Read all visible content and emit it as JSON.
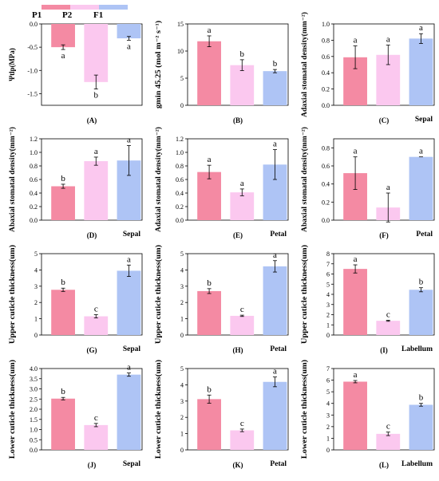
{
  "legend": [
    {
      "name": "P1",
      "color": "#f48aa3"
    },
    {
      "name": "P2",
      "color": "#fbc8ef"
    },
    {
      "name": "F1",
      "color": "#aec4f5"
    }
  ],
  "chart_data": [
    {
      "type": "bar",
      "id": "A",
      "panel_label": "(A)",
      "organ": "",
      "ylabel": "Ψtlp(MPa)",
      "ylim": [
        -1.75,
        0
      ],
      "yticks": [
        "0.0",
        "-0.5",
        "-1.0",
        "-1.5"
      ],
      "ytick_values": [
        0,
        -0.5,
        -1.0,
        -1.5
      ],
      "negative": true,
      "categories": [
        "P1",
        "P2",
        "F1"
      ],
      "values": [
        -0.5,
        -1.25,
        -0.31
      ],
      "errors": [
        0.05,
        0.15,
        0.04
      ],
      "letters": [
        "a",
        "b",
        "a"
      ]
    },
    {
      "type": "bar",
      "id": "B",
      "panel_label": "(B)",
      "organ": "",
      "ylabel": "gmin 45.25 (mol m⁻² s⁻¹)",
      "ylim": [
        0,
        15
      ],
      "yticks": [
        "0",
        "5",
        "10",
        "15"
      ],
      "ytick_values": [
        0,
        5,
        10,
        15
      ],
      "categories": [
        "P1",
        "P2",
        "F1"
      ],
      "values": [
        11.8,
        7.4,
        6.3
      ],
      "errors": [
        1.0,
        1.0,
        0.3
      ],
      "letters": [
        "a",
        "b",
        "b"
      ]
    },
    {
      "type": "bar",
      "id": "C",
      "panel_label": "(C)",
      "organ": "Sepal",
      "ylabel": "Adaxial stomatal density(mm⁻²)",
      "ylim": [
        0,
        1.0
      ],
      "yticks": [
        "0.0",
        "0.2",
        "0.4",
        "0.6",
        "0.8",
        "1.0"
      ],
      "ytick_values": [
        0,
        0.2,
        0.4,
        0.6,
        0.8,
        1.0
      ],
      "categories": [
        "P1",
        "P2",
        "F1"
      ],
      "values": [
        0.59,
        0.62,
        0.82
      ],
      "errors": [
        0.14,
        0.12,
        0.06
      ],
      "letters": [
        "a",
        "a",
        "a"
      ]
    },
    {
      "type": "bar",
      "id": "D",
      "panel_label": "(D)",
      "organ": "Sepal",
      "ylabel": "Abaxial stomatal density(mm⁻²)",
      "ylim": [
        0,
        1.2
      ],
      "yticks": [
        "0.0",
        "0.2",
        "0.4",
        "0.6",
        "0.8",
        "1.0",
        "1.2"
      ],
      "ytick_values": [
        0,
        0.2,
        0.4,
        0.6,
        0.8,
        1.0,
        1.2
      ],
      "categories": [
        "P1",
        "P2",
        "F1"
      ],
      "values": [
        0.5,
        0.87,
        0.88
      ],
      "errors": [
        0.03,
        0.06,
        0.22
      ],
      "letters": [
        "b",
        "a",
        "a"
      ]
    },
    {
      "type": "bar",
      "id": "E",
      "panel_label": "(E)",
      "organ": "Petal",
      "ylabel": "Adaxial stomatal density(mm⁻²)",
      "ylim": [
        0,
        1.2
      ],
      "yticks": [
        "0.0",
        "0.2",
        "0.4",
        "0.6",
        "0.8",
        "1.0",
        "1.2"
      ],
      "ytick_values": [
        0,
        0.2,
        0.4,
        0.6,
        0.8,
        1.0,
        1.2
      ],
      "categories": [
        "P1",
        "P2",
        "F1"
      ],
      "values": [
        0.71,
        0.41,
        0.82
      ],
      "errors": [
        0.1,
        0.05,
        0.22
      ],
      "letters": [
        "a",
        "a",
        "a"
      ]
    },
    {
      "type": "bar",
      "id": "F",
      "panel_label": "(F)",
      "organ": "Petal",
      "ylabel": "Abaxial stomatal density(mm⁻²)",
      "ylim": [
        0,
        0.9
      ],
      "yticks": [
        "0.0",
        "0.2",
        "0.4",
        "0.6",
        "0.8"
      ],
      "ytick_values": [
        0,
        0.2,
        0.4,
        0.6,
        0.8
      ],
      "categories": [
        "P1",
        "P2",
        "F1"
      ],
      "values": [
        0.52,
        0.14,
        0.7
      ],
      "errors": [
        0.18,
        0.16,
        0.0
      ],
      "letters": [
        "a",
        "a",
        "a"
      ]
    },
    {
      "type": "bar",
      "id": "G",
      "panel_label": "(G)",
      "organ": "Sepal",
      "ylabel": "Upper cuticle thickness(um)",
      "ylim": [
        0,
        5
      ],
      "yticks": [
        "0",
        "1",
        "2",
        "3",
        "4",
        "5"
      ],
      "ytick_values": [
        0,
        1,
        2,
        3,
        4,
        5
      ],
      "categories": [
        "P1",
        "P2",
        "F1"
      ],
      "values": [
        2.78,
        1.15,
        3.95
      ],
      "errors": [
        0.1,
        0.1,
        0.35
      ],
      "letters": [
        "b",
        "c",
        "a"
      ]
    },
    {
      "type": "bar",
      "id": "H",
      "panel_label": "(H)",
      "organ": "Petal",
      "ylabel": "Upper cuticle thickness(um)",
      "ylim": [
        0,
        5
      ],
      "yticks": [
        "0",
        "1",
        "2",
        "3",
        "4",
        "5"
      ],
      "ytick_values": [
        0,
        1,
        2,
        3,
        4,
        5
      ],
      "categories": [
        "P1",
        "P2",
        "F1"
      ],
      "values": [
        2.7,
        1.18,
        4.22
      ],
      "errors": [
        0.15,
        0.04,
        0.35
      ],
      "letters": [
        "b",
        "c",
        "a"
      ]
    },
    {
      "type": "bar",
      "id": "I",
      "panel_label": "(I)",
      "organ": "Labellum",
      "ylabel": "Upper cuticle thickness(um)",
      "ylim": [
        0,
        8
      ],
      "yticks": [
        "0",
        "1",
        "2",
        "3",
        "4",
        "5",
        "6",
        "7",
        "8"
      ],
      "ytick_values": [
        0,
        1,
        2,
        3,
        4,
        5,
        6,
        7,
        8
      ],
      "categories": [
        "P1",
        "P2",
        "F1"
      ],
      "values": [
        6.5,
        1.4,
        4.45
      ],
      "errors": [
        0.4,
        0.05,
        0.2
      ],
      "letters": [
        "a",
        "c",
        "b"
      ]
    },
    {
      "type": "bar",
      "id": "J",
      "panel_label": "(J)",
      "organ": "Sepal",
      "ylabel": "Lower cuticle thickness(um)",
      "ylim": [
        0,
        4.0
      ],
      "yticks": [
        "0.0",
        "0.5",
        "1.0",
        "1.5",
        "2.0",
        "2.5",
        "3.0",
        "3.5",
        "4.0"
      ],
      "ytick_values": [
        0,
        0.5,
        1.0,
        1.5,
        2.0,
        2.5,
        3.0,
        3.5,
        4.0
      ],
      "categories": [
        "P1",
        "P2",
        "F1"
      ],
      "values": [
        2.52,
        1.22,
        3.7
      ],
      "errors": [
        0.06,
        0.08,
        0.08
      ],
      "letters": [
        "b",
        "c",
        "a"
      ]
    },
    {
      "type": "bar",
      "id": "K",
      "panel_label": "(K)",
      "organ": "Petal",
      "ylabel": "Lower cuticle thickness(um)",
      "ylim": [
        0,
        5
      ],
      "yticks": [
        "0",
        "1",
        "2",
        "3",
        "4",
        "5"
      ],
      "ytick_values": [
        0,
        1,
        2,
        3,
        4,
        5
      ],
      "categories": [
        "P1",
        "P2",
        "F1"
      ],
      "values": [
        3.12,
        1.2,
        4.18
      ],
      "errors": [
        0.25,
        0.08,
        0.3
      ],
      "letters": [
        "b",
        "c",
        "a"
      ]
    },
    {
      "type": "bar",
      "id": "L",
      "panel_label": "(L)",
      "organ": "Labellum",
      "ylabel": "Lower cuticle thickness(um)",
      "ylim": [
        0,
        7
      ],
      "yticks": [
        "0",
        "1",
        "2",
        "3",
        "4",
        "5",
        "6",
        "7"
      ],
      "ytick_values": [
        0,
        1,
        2,
        3,
        4,
        5,
        6,
        7
      ],
      "categories": [
        "P1",
        "P2",
        "F1"
      ],
      "values": [
        5.87,
        1.38,
        3.88
      ],
      "errors": [
        0.1,
        0.15,
        0.12
      ],
      "letters": [
        "a",
        "c",
        "b"
      ]
    }
  ]
}
